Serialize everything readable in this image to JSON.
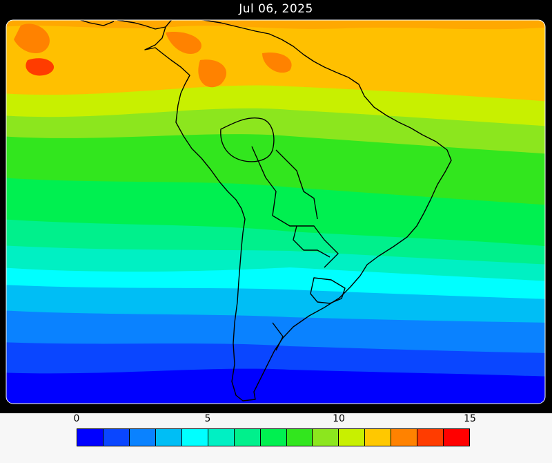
{
  "title": "Jul 06, 2025",
  "colorbar": {
    "tick_labels": [
      "0",
      "5",
      "10",
      "15"
    ],
    "colors": [
      "#0000ff",
      "#0a46ff",
      "#0a82ff",
      "#00bef5",
      "#00ffff",
      "#00f0c3",
      "#00f08c",
      "#00f050",
      "#32e61e",
      "#8ce61e",
      "#c8f000",
      "#ffc800",
      "#ff8200",
      "#ff3c00",
      "#ff0000"
    ]
  }
}
